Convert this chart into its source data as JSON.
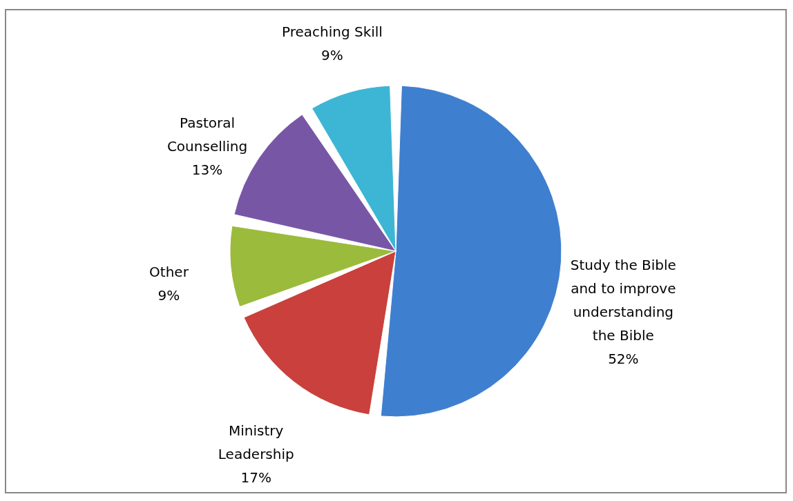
{
  "chart_data": {
    "type": "pie",
    "categories": [
      "Study the Bible and to improve understanding the Bible",
      "Ministry Leadership",
      "Other",
      "Pastoral Counselling",
      "Preaching Skill"
    ],
    "values": [
      52,
      17,
      9,
      13,
      9
    ],
    "colors": [
      "#3f7fcf",
      "#c9403c",
      "#9bbb3c",
      "#7856a6",
      "#3cb6d4"
    ],
    "value_labels": [
      "52%",
      "17%",
      "9%",
      "13%",
      "9%"
    ]
  }
}
